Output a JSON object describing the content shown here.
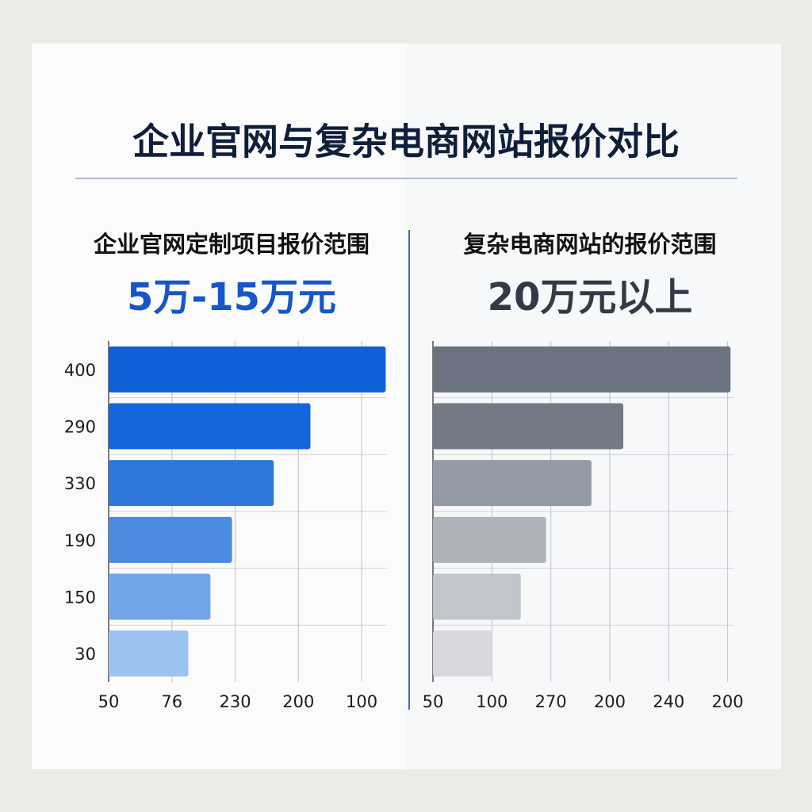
{
  "title": "企业官网与复杂电商网站报价对比",
  "chart_data": [
    {
      "type": "bar",
      "orientation": "horizontal",
      "subtitle": "企业官网定制项目报价范围",
      "headline": "5万-15万元",
      "headline_color": "#1656c8",
      "categories": [
        "400",
        "290",
        "330",
        "190",
        "150",
        "30"
      ],
      "values": [
        4.38,
        3.19,
        2.61,
        1.95,
        1.61,
        1.26
      ],
      "colors": [
        "#0f5fd9",
        "#1565dc",
        "#2f78db",
        "#4a8ae0",
        "#72a6e8",
        "#9cc2ef"
      ],
      "xlim": [
        0,
        4.4
      ],
      "xticks": [
        {
          "value": 0,
          "label": "50"
        },
        {
          "value": 1,
          "label": "76"
        },
        {
          "value": 2,
          "label": "230"
        },
        {
          "value": 3,
          "label": "200"
        },
        {
          "value": 4,
          "label": "100"
        }
      ],
      "grid": true
    },
    {
      "type": "bar",
      "orientation": "horizontal",
      "subtitle": "复杂电商网站的报价范围",
      "headline": "20万元以上",
      "headline_color": "#333a45",
      "values": [
        5.05,
        3.23,
        2.69,
        1.92,
        1.49,
        0.99
      ],
      "colors": [
        "#6b7380",
        "#737a86",
        "#959ba5",
        "#aeb2ba",
        "#c2c5cb",
        "#d6d8dd"
      ],
      "xlim": [
        0,
        5.1
      ],
      "xticks": [
        {
          "value": 0,
          "label": "50"
        },
        {
          "value": 1,
          "label": "100"
        },
        {
          "value": 2,
          "label": "270"
        },
        {
          "value": 3,
          "label": "200"
        },
        {
          "value": 4,
          "label": "240"
        },
        {
          "value": 5,
          "label": "200"
        }
      ],
      "grid": true
    }
  ]
}
